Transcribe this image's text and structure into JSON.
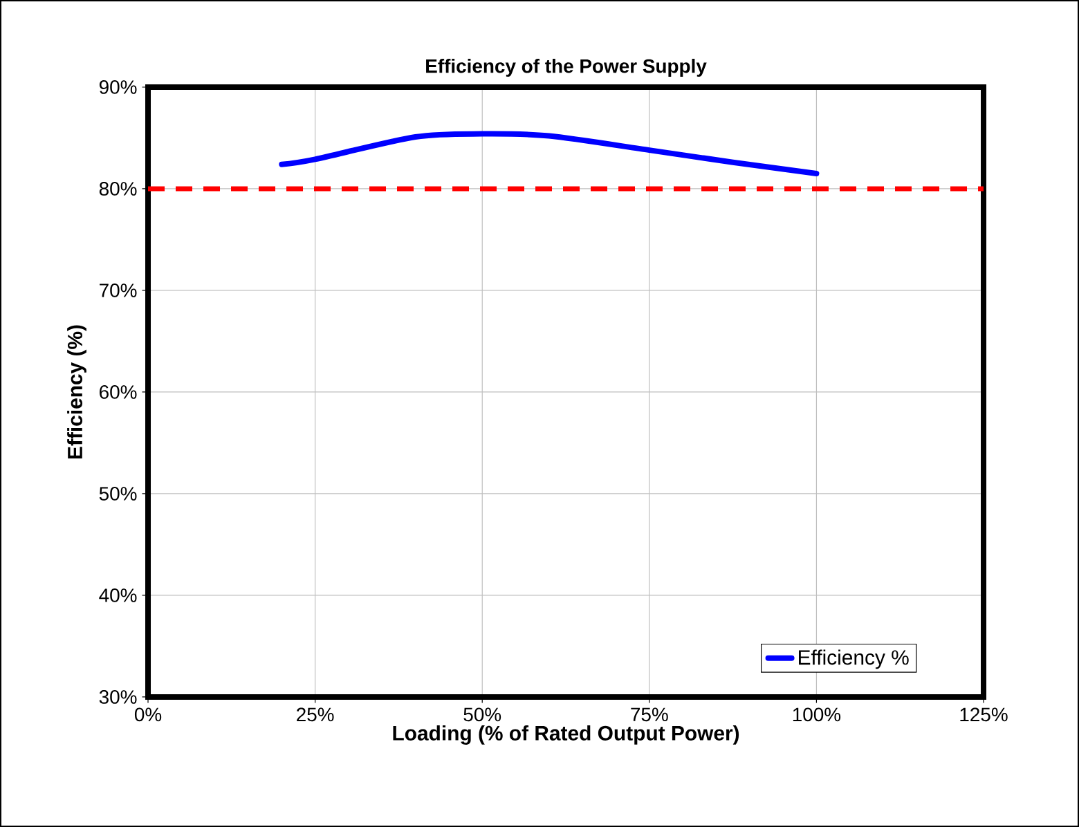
{
  "chart_data": {
    "type": "line",
    "title": "Efficiency of the Power Supply",
    "xlabel": "Loading (% of Rated Output Power)",
    "ylabel": "Efficiency (%)",
    "x": [
      20,
      25,
      40,
      50,
      60,
      75,
      87.5,
      100
    ],
    "series": [
      {
        "name": "Efficiency %",
        "color": "#0000ff",
        "values": [
          82.4,
          82.9,
          85.1,
          85.4,
          85.2,
          83.8,
          82.6,
          81.5
        ]
      }
    ],
    "xlim": [
      0,
      125
    ],
    "ylim": [
      30,
      90
    ],
    "xticks": [
      {
        "value": 0,
        "label": "0%"
      },
      {
        "value": 25,
        "label": "25%"
      },
      {
        "value": 50,
        "label": "50%"
      },
      {
        "value": 75,
        "label": "75%"
      },
      {
        "value": 100,
        "label": "100%"
      },
      {
        "value": 125,
        "label": "125%"
      }
    ],
    "yticks": [
      {
        "value": 30,
        "label": "30%"
      },
      {
        "value": 40,
        "label": "40%"
      },
      {
        "value": 50,
        "label": "50%"
      },
      {
        "value": 60,
        "label": "60%"
      },
      {
        "value": 70,
        "label": "70%"
      },
      {
        "value": 80,
        "label": "80%"
      },
      {
        "value": 90,
        "label": "90%"
      }
    ],
    "ref_lines": [
      {
        "axis": "y",
        "value": 80,
        "color": "#ff0000",
        "line_style": "dashed"
      }
    ],
    "grid": true,
    "legend": "bottom right",
    "marker": "none",
    "line_style": "solid"
  }
}
